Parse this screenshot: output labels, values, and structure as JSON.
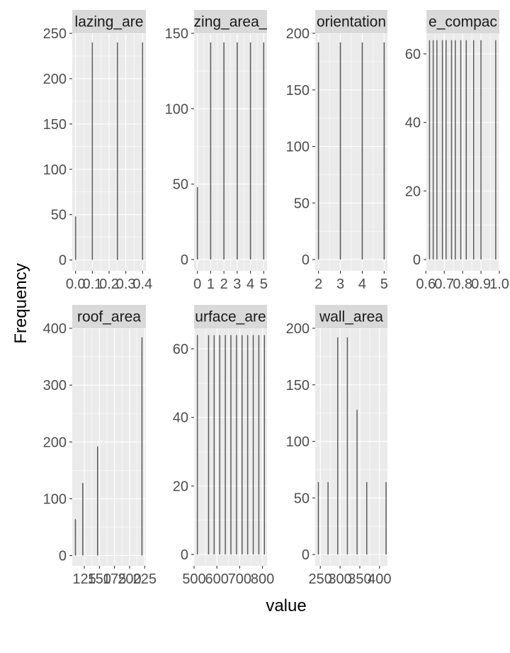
{
  "chart_data": {
    "type": "bar",
    "xlabel": "value",
    "ylabel": "Frequency",
    "bar_color": "#595959",
    "panel_color": "#ebebeb",
    "strip_color": "#d9d9d9",
    "panels": [
      {
        "name": "glazing_area",
        "strip_label": "lazing_are",
        "xlim": [
          -0.02,
          0.42
        ],
        "ylim": [
          -12,
          250
        ],
        "xticks": [
          0.0,
          0.1,
          0.2,
          0.3,
          0.4
        ],
        "xtick_labels": [
          "0.0",
          "0.1",
          "0.2",
          "0.3",
          "0.4"
        ],
        "yticks": [
          0,
          50,
          100,
          150,
          200,
          250
        ],
        "bar_width": 0.006,
        "x": [
          0.0,
          0.1,
          0.25,
          0.4
        ],
        "values": [
          48,
          240,
          240,
          240
        ]
      },
      {
        "name": "glazing_area_distribution",
        "strip_label": "zing_area_",
        "xlim": [
          -0.25,
          5.25
        ],
        "ylim": [
          -7.5,
          150
        ],
        "xticks": [
          0,
          1,
          2,
          3,
          4,
          5
        ],
        "xtick_labels": [
          "0",
          "1",
          "2",
          "3",
          "4",
          "5"
        ],
        "yticks": [
          0,
          50,
          100,
          150
        ],
        "bar_width": 0.08,
        "x": [
          0,
          1,
          2,
          3,
          4,
          5
        ],
        "values": [
          48,
          144,
          144,
          144,
          144,
          144
        ]
      },
      {
        "name": "orientation",
        "strip_label": "orientation",
        "xlim": [
          1.85,
          5.15
        ],
        "ylim": [
          -10,
          200
        ],
        "xticks": [
          2,
          3,
          4,
          5
        ],
        "xtick_labels": [
          "2",
          "3",
          "4",
          "5"
        ],
        "yticks": [
          0,
          50,
          100,
          150,
          200
        ],
        "bar_width": 0.05,
        "x": [
          2,
          3,
          4,
          5
        ],
        "values": [
          192,
          192,
          192,
          192
        ]
      },
      {
        "name": "relative_compactness",
        "strip_label": "e_compac",
        "xlim": [
          0.603,
          1.0
        ],
        "ylim": [
          -3.3,
          66
        ],
        "xticks": [
          0.6,
          0.7,
          0.8,
          0.9,
          1.0
        ],
        "xtick_labels": [
          "0.6",
          "0.7",
          "0.8",
          "0.9",
          "1.0"
        ],
        "yticks": [
          0,
          20,
          40,
          60
        ],
        "bar_width": 0.0055,
        "x": [
          0.62,
          0.64,
          0.66,
          0.69,
          0.71,
          0.74,
          0.76,
          0.79,
          0.82,
          0.86,
          0.9,
          0.98
        ],
        "values": [
          64,
          64,
          64,
          64,
          64,
          64,
          64,
          64,
          64,
          64,
          64,
          64
        ]
      },
      {
        "name": "roof_area",
        "strip_label": "roof_area",
        "xlim": [
          105,
          227
        ],
        "ylim": [
          -18,
          400
        ],
        "xticks": [
          125,
          150,
          175,
          200,
          225
        ],
        "xtick_labels": [
          "125",
          "150",
          "175",
          "200",
          "225"
        ],
        "yticks": [
          0,
          100,
          200,
          300,
          400
        ],
        "bar_width": 1.8,
        "x": [
          110.25,
          122.5,
          147,
          220.5
        ],
        "values": [
          64,
          128,
          192,
          384
        ]
      },
      {
        "name": "surface_area",
        "strip_label": "urface_are",
        "xlim": [
          500,
          820
        ],
        "ylim": [
          -3.3,
          66
        ],
        "xticks": [
          500,
          600,
          700,
          800
        ],
        "xtick_labels": [
          "500",
          "600",
          "700",
          "800"
        ],
        "yticks": [
          0,
          20,
          40,
          60
        ],
        "bar_width": 4.5,
        "x": [
          514.5,
          563.5,
          588,
          612.5,
          637,
          661.5,
          686,
          710.5,
          735,
          759.5,
          784,
          808.5
        ],
        "values": [
          64,
          64,
          64,
          64,
          64,
          64,
          64,
          64,
          64,
          64,
          64,
          64
        ]
      },
      {
        "name": "wall_area",
        "strip_label": "wall_area",
        "xlim": [
          237,
          420
        ],
        "ylim": [
          -10,
          200
        ],
        "xticks": [
          250,
          300,
          350,
          400
        ],
        "xtick_labels": [
          "250",
          "300",
          "350",
          "400"
        ],
        "yticks": [
          0,
          50,
          100,
          150,
          200
        ],
        "bar_width": 2.6,
        "x": [
          245,
          269.5,
          294,
          318.5,
          343,
          367.5,
          416.5
        ],
        "values": [
          64,
          64,
          192,
          192,
          128,
          64,
          64
        ]
      }
    ]
  }
}
